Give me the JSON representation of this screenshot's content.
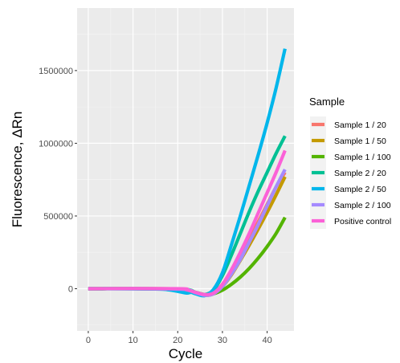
{
  "chart_data": {
    "type": "line",
    "xlabel": "Cycle",
    "ylabel": "Fluorescence,  ΔRn",
    "xlim": [
      -2.5,
      46
    ],
    "ylim": [
      -290000,
      1930000
    ],
    "x_ticks": [
      0,
      10,
      20,
      30,
      40
    ],
    "y_ticks": [
      0,
      500000,
      1000000,
      1500000
    ],
    "y_tick_labels": [
      "0",
      "500000",
      "1000000",
      "1500000"
    ],
    "grid": true,
    "legend": {
      "title": "Sample",
      "position": "right"
    },
    "series": [
      {
        "name": "Sample 1 / 20",
        "color": "#F8766D",
        "points": [
          [
            0,
            0
          ],
          [
            20,
            -2000
          ],
          [
            24,
            -28000
          ],
          [
            26,
            -45000
          ],
          [
            28,
            -30000
          ],
          [
            30,
            30000
          ],
          [
            32,
            120000
          ],
          [
            34,
            230000
          ],
          [
            36,
            340000
          ],
          [
            38,
            460000
          ],
          [
            40,
            580000
          ],
          [
            42,
            700000
          ],
          [
            44,
            800000
          ]
        ]
      },
      {
        "name": "Sample 1 / 50",
        "color": "#C49A00",
        "points": [
          [
            0,
            0
          ],
          [
            20,
            -2000
          ],
          [
            24,
            -28000
          ],
          [
            26,
            -45000
          ],
          [
            28,
            -35000
          ],
          [
            30,
            15000
          ],
          [
            32,
            95000
          ],
          [
            34,
            195000
          ],
          [
            36,
            300000
          ],
          [
            38,
            410000
          ],
          [
            40,
            525000
          ],
          [
            42,
            645000
          ],
          [
            44,
            770000
          ]
        ]
      },
      {
        "name": "Sample 1 / 100",
        "color": "#53B400",
        "points": [
          [
            0,
            0
          ],
          [
            20,
            -2000
          ],
          [
            24,
            -25000
          ],
          [
            26,
            -40000
          ],
          [
            28,
            -35000
          ],
          [
            30,
            -10000
          ],
          [
            32,
            30000
          ],
          [
            34,
            80000
          ],
          [
            36,
            140000
          ],
          [
            38,
            210000
          ],
          [
            40,
            290000
          ],
          [
            42,
            380000
          ],
          [
            44,
            490000
          ]
        ]
      },
      {
        "name": "Sample 2 / 20",
        "color": "#00C094",
        "points": [
          [
            0,
            0
          ],
          [
            20,
            -2000
          ],
          [
            24,
            -25000
          ],
          [
            26,
            -40000
          ],
          [
            28,
            -10000
          ],
          [
            30,
            90000
          ],
          [
            32,
            230000
          ],
          [
            34,
            380000
          ],
          [
            36,
            530000
          ],
          [
            38,
            670000
          ],
          [
            40,
            800000
          ],
          [
            42,
            930000
          ],
          [
            44,
            1050000
          ]
        ]
      },
      {
        "name": "Sample 2 / 50",
        "color": "#00B6EB",
        "points": [
          [
            0,
            0
          ],
          [
            15,
            -2000
          ],
          [
            18,
            -8000
          ],
          [
            20,
            -18000
          ],
          [
            22,
            -30000
          ],
          [
            23,
            -25000
          ],
          [
            24,
            -35000
          ],
          [
            26,
            -48000
          ],
          [
            28,
            -5000
          ],
          [
            30,
            110000
          ],
          [
            32,
            300000
          ],
          [
            34,
            500000
          ],
          [
            36,
            710000
          ],
          [
            38,
            920000
          ],
          [
            40,
            1140000
          ],
          [
            42,
            1380000
          ],
          [
            44,
            1650000
          ]
        ]
      },
      {
        "name": "Sample 2 / 100",
        "color": "#A58AFF",
        "points": [
          [
            0,
            0
          ],
          [
            20,
            -2000
          ],
          [
            24,
            -28000
          ],
          [
            26,
            -45000
          ],
          [
            28,
            -35000
          ],
          [
            30,
            15000
          ],
          [
            32,
            100000
          ],
          [
            34,
            200000
          ],
          [
            36,
            320000
          ],
          [
            38,
            440000
          ],
          [
            40,
            570000
          ],
          [
            42,
            700000
          ],
          [
            44,
            820000
          ]
        ]
      },
      {
        "name": "Positive control",
        "color": "#FB61D7",
        "points": [
          [
            0,
            0
          ],
          [
            20,
            0
          ],
          [
            22,
            -8000
          ],
          [
            24,
            -25000
          ],
          [
            26,
            -40000
          ],
          [
            28,
            -30000
          ],
          [
            30,
            30000
          ],
          [
            32,
            130000
          ],
          [
            34,
            250000
          ],
          [
            36,
            380000
          ],
          [
            38,
            520000
          ],
          [
            40,
            660000
          ],
          [
            42,
            800000
          ],
          [
            44,
            950000
          ]
        ]
      }
    ]
  }
}
